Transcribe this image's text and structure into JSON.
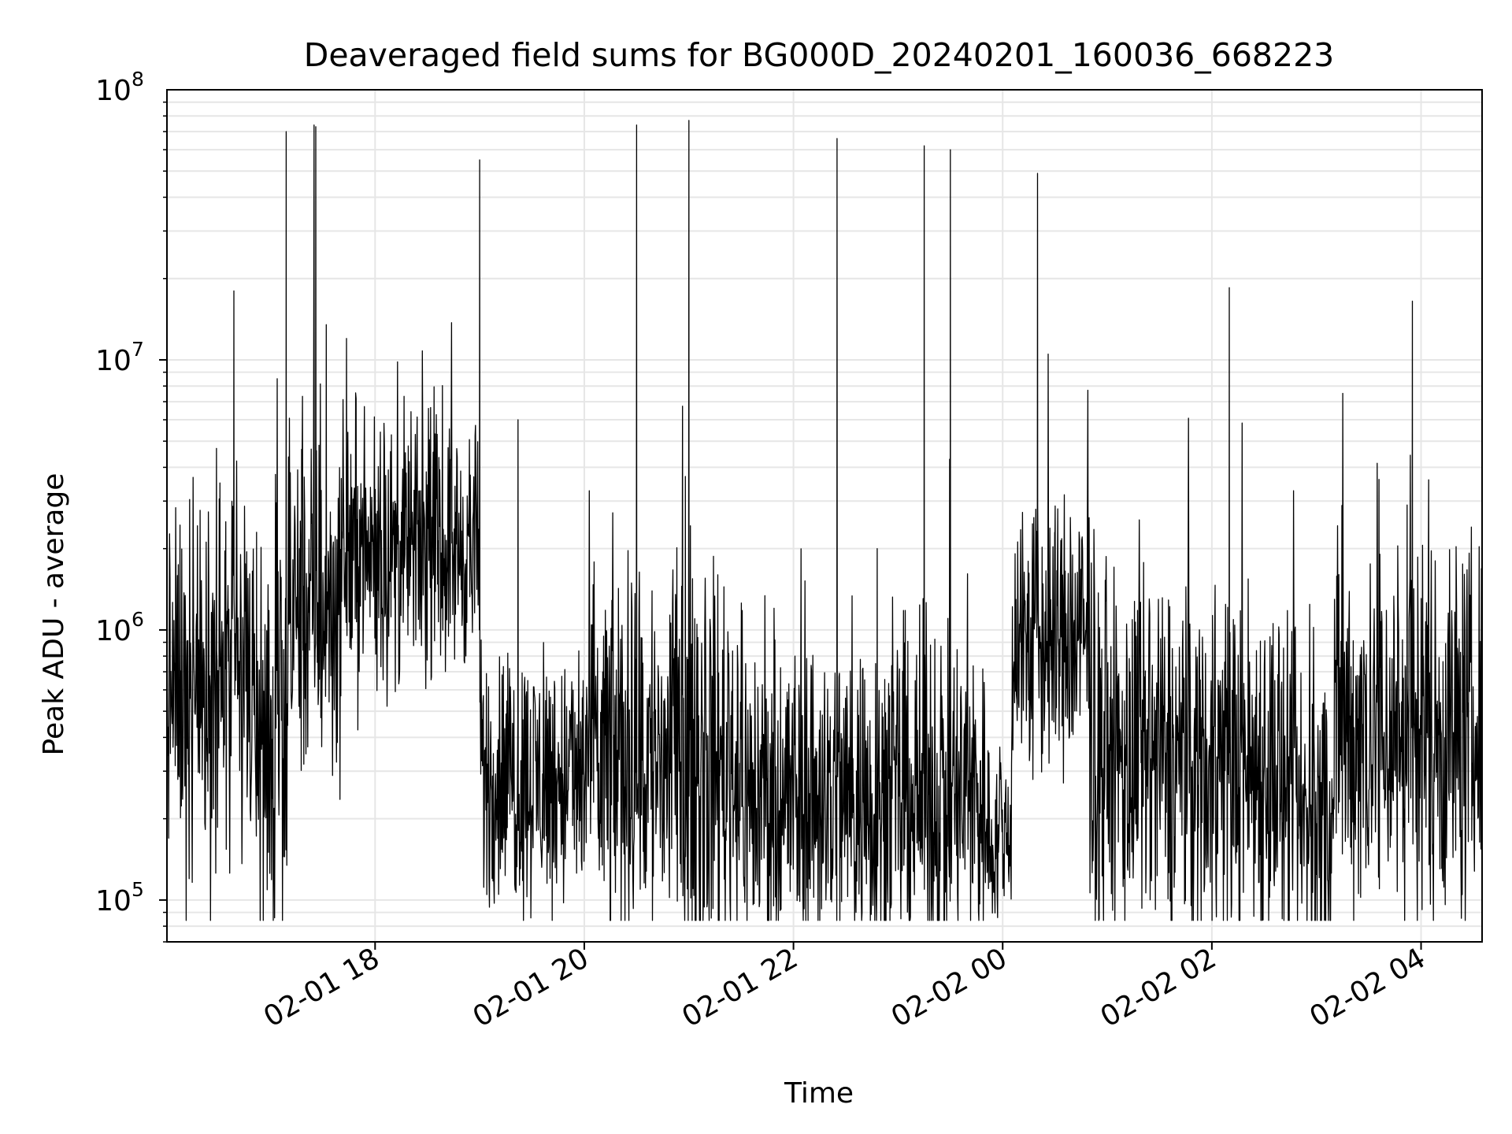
{
  "chart_data": {
    "type": "line",
    "title": "Deaveraged field sums for BG000D_20240201_160036_668223",
    "xlabel": "Time",
    "ylabel": "Peak ADU - average",
    "yscale": "log",
    "ylim": [
      70000,
      100000000
    ],
    "xlim": [
      "2024-02-01 16:00:36",
      "2024-02-02 04:35:00"
    ],
    "grid": true,
    "legend": "none",
    "line_color": "#000000",
    "grid_color": "#e6e6e6",
    "y_ticks": [
      {
        "value": 100000,
        "base": "10",
        "exp": "5"
      },
      {
        "value": 1000000,
        "base": "10",
        "exp": "6"
      },
      {
        "value": 10000000,
        "base": "10",
        "exp": "7"
      },
      {
        "value": 100000000,
        "base": "10",
        "exp": "8"
      }
    ],
    "x_ticks": [
      {
        "label": "02-01 18",
        "time": "2024-02-01 18:00"
      },
      {
        "label": "02-01 20",
        "time": "2024-02-01 20:00"
      },
      {
        "label": "02-01 22",
        "time": "2024-02-01 22:00"
      },
      {
        "label": "02-02 00",
        "time": "2024-02-02 00:00"
      },
      {
        "label": "02-02 02",
        "time": "2024-02-02 02:00"
      },
      {
        "label": "02-02 04",
        "time": "2024-02-02 04:00"
      }
    ],
    "segments": [
      {
        "start": "2024-02-01 16:00:36",
        "end": "2024-02-01 16:50",
        "median": 600000,
        "spread": 0.3
      },
      {
        "start": "2024-02-01 16:50",
        "end": "2024-02-01 17:10",
        "median": 350000,
        "spread": 0.35
      },
      {
        "start": "2024-02-01 17:10",
        "end": "2024-02-01 17:40",
        "median": 1200000,
        "spread": 0.28
      },
      {
        "start": "2024-02-01 17:40",
        "end": "2024-02-01 18:20",
        "median": 1900000,
        "spread": 0.22
      },
      {
        "start": "2024-02-01 18:20",
        "end": "2024-02-01 19:00",
        "median": 2000000,
        "spread": 0.2
      },
      {
        "start": "2024-02-01 19:00",
        "end": "2024-02-01 20:00",
        "median": 280000,
        "spread": 0.22
      },
      {
        "start": "2024-02-01 20:00",
        "end": "2024-02-01 21:30",
        "median": 330000,
        "spread": 0.32
      },
      {
        "start": "2024-02-01 21:30",
        "end": "2024-02-01 23:50",
        "median": 240000,
        "spread": 0.28
      },
      {
        "start": "2024-02-01 23:50",
        "end": "2024-02-02 00:05",
        "median": 170000,
        "spread": 0.15
      },
      {
        "start": "2024-02-02 00:05",
        "end": "2024-02-02 00:50",
        "median": 900000,
        "spread": 0.25
      },
      {
        "start": "2024-02-02 00:50",
        "end": "2024-02-02 02:40",
        "median": 320000,
        "spread": 0.3
      },
      {
        "start": "2024-02-02 02:40",
        "end": "2024-02-02 03:10",
        "median": 190000,
        "spread": 0.3
      },
      {
        "start": "2024-02-02 03:10",
        "end": "2024-02-02 04:35",
        "median": 420000,
        "spread": 0.32
      }
    ],
    "spikes": [
      {
        "time": "2024-02-01 16:29",
        "value": 4700000
      },
      {
        "time": "2024-02-01 16:31",
        "value": 3500000
      },
      {
        "time": "2024-02-01 16:39",
        "value": 18000000
      },
      {
        "time": "2024-02-01 16:52",
        "value": 2300000
      },
      {
        "time": "2024-02-01 17:09",
        "value": 70000000
      },
      {
        "time": "2024-02-01 17:25",
        "value": 74000000
      },
      {
        "time": "2024-02-01 17:26",
        "value": 73000000
      },
      {
        "time": "2024-02-01 17:32",
        "value": 13500000
      },
      {
        "time": "2024-02-01 17:50",
        "value": 3400000
      },
      {
        "time": "2024-02-01 18:03",
        "value": 5400000
      },
      {
        "time": "2024-02-01 18:19",
        "value": 4800000
      },
      {
        "time": "2024-02-01 19:00",
        "value": 55000000
      },
      {
        "time": "2024-02-01 19:22",
        "value": 6000000
      },
      {
        "time": "2024-02-01 20:30",
        "value": 74000000
      },
      {
        "time": "2024-02-01 20:58",
        "value": 3700000
      },
      {
        "time": "2024-02-01 21:00",
        "value": 77000000
      },
      {
        "time": "2024-02-01 22:25",
        "value": 66000000
      },
      {
        "time": "2024-02-01 22:48",
        "value": 2000000
      },
      {
        "time": "2024-02-01 23:15",
        "value": 62000000
      },
      {
        "time": "2024-02-01 23:30",
        "value": 60000000
      },
      {
        "time": "2024-02-02 00:19",
        "value": 2800000
      },
      {
        "time": "2024-02-02 00:20",
        "value": 49000000
      },
      {
        "time": "2024-02-02 00:30",
        "value": 2200000
      },
      {
        "time": "2024-02-02 02:10",
        "value": 18500000
      },
      {
        "time": "2024-02-02 03:52",
        "value": 2900000
      },
      {
        "time": "2024-02-02 03:55",
        "value": 16500000
      }
    ]
  }
}
